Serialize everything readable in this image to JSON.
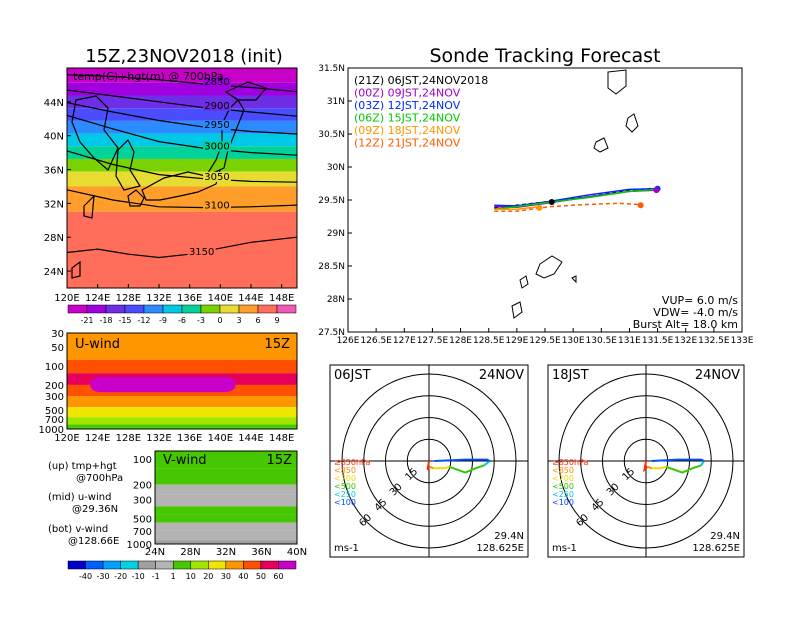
{
  "chart_data": [
    {
      "type": "heatmap",
      "panel": "map_700hPa",
      "title": "15Z,23NOV2018 (init)",
      "overlay_label": "temp(C)+hgt(m) @ 700hPa",
      "x_ticks": [
        "120E",
        "124E",
        "128E",
        "132E",
        "136E",
        "140E",
        "144E",
        "148E"
      ],
      "y_ticks": [
        "24N",
        "28N",
        "32N",
        "36N",
        "40N",
        "44N"
      ],
      "xlim": [
        120,
        150
      ],
      "ylim": [
        22,
        48
      ],
      "contour_labels": [
        "2850",
        "2900",
        "2950",
        "3000",
        "3050",
        "3100",
        "3150"
      ],
      "contours": [
        {
          "label": "2850",
          "points": [
            [
              120,
              47.2
            ],
            [
              126,
              47.0
            ],
            [
              132,
              46.6
            ],
            [
              138,
              46.1
            ],
            [
              144,
              45.7
            ],
            [
              150,
              45.2
            ]
          ]
        },
        {
          "label": "2900",
          "points": [
            [
              120,
              45.4
            ],
            [
              126,
              44.7
            ],
            [
              132,
              44.0
            ],
            [
              138,
              43.3
            ],
            [
              144,
              42.8
            ],
            [
              150,
              42.3
            ]
          ]
        },
        {
          "label": "2950",
          "points": [
            [
              120,
              43.9
            ],
            [
              126,
              42.8
            ],
            [
              132,
              41.8
            ],
            [
              138,
              41.0
            ],
            [
              144,
              40.5
            ],
            [
              150,
              40.2
            ]
          ]
        },
        {
          "label": "3000",
          "points": [
            [
              120,
              42.4
            ],
            [
              126,
              40.8
            ],
            [
              132,
              39.3
            ],
            [
              138,
              38.5
            ],
            [
              144,
              38.0
            ],
            [
              150,
              37.7
            ]
          ]
        },
        {
          "label": "3050",
          "points": [
            [
              120,
              38.2
            ],
            [
              126,
              36.6
            ],
            [
              132,
              35.4
            ],
            [
              138,
              34.9
            ],
            [
              144,
              34.6
            ],
            [
              150,
              34.5
            ]
          ]
        },
        {
          "label": "3100",
          "points": [
            [
              120,
              33.6
            ],
            [
              126,
              32.4
            ],
            [
              132,
              31.6
            ],
            [
              138,
              31.5
            ],
            [
              144,
              31.6
            ],
            [
              150,
              31.8
            ]
          ]
        },
        {
          "label": "3150",
          "points": [
            [
              120,
              26.2
            ],
            [
              124,
              26.6
            ],
            [
              128,
              26.0
            ],
            [
              132,
              25.6
            ],
            [
              136,
              26.0
            ],
            [
              140,
              26.7
            ],
            [
              144,
              27.4
            ],
            [
              150,
              28.0
            ]
          ]
        }
      ],
      "temperature_bands": [
        {
          "lat": 47.0,
          "value": -21
        },
        {
          "lat": 45.5,
          "value": -18
        },
        {
          "lat": 44.0,
          "value": -15
        },
        {
          "lat": 42.5,
          "value": -12
        },
        {
          "lat": 41.0,
          "value": -9
        },
        {
          "lat": 39.5,
          "value": -6
        },
        {
          "lat": 38.0,
          "value": -3
        },
        {
          "lat": 36.5,
          "value": 0
        },
        {
          "lat": 35.0,
          "value": 3
        },
        {
          "lat": 33.0,
          "value": 6
        },
        {
          "lat": 29.0,
          "value": 9
        }
      ],
      "colorbar_labels": [
        "-21",
        "-18",
        "-15",
        "-12",
        "-9",
        "-6",
        "-3",
        "0",
        "3",
        "6",
        "9"
      ],
      "colorbar_colors": [
        "#c800c8",
        "#a000e0",
        "#6e2ee6",
        "#4c4cff",
        "#2c8cff",
        "#00c8e6",
        "#00d29a",
        "#7ad200",
        "#e6dc32",
        "#ff9e2a",
        "#ff6e5a",
        "#f05ab4"
      ]
    },
    {
      "type": "heatmap",
      "panel": "u_wind_cross_section",
      "label": "U-wind",
      "time_label": "15Z",
      "x_ticks": [
        "120E",
        "124E",
        "128E",
        "132E",
        "136E",
        "140E",
        "144E",
        "148E"
      ],
      "y_ticks": [
        "30",
        "50",
        "100",
        "200",
        "300",
        "500",
        "700",
        "1000"
      ],
      "xlim": [
        120,
        150
      ],
      "band_values": [
        40,
        40,
        50,
        60,
        50,
        40,
        30,
        20,
        10,
        5
      ],
      "hot_core": {
        "x_from": 123,
        "x_to": 142,
        "p_top": 150,
        "p_bottom": 260,
        "value": 80
      }
    },
    {
      "type": "heatmap",
      "panel": "v_wind_cross_section",
      "label": "V-wind",
      "time_label": "15Z",
      "x_ticks": [
        "24N",
        "28N",
        "32N",
        "36N",
        "40N"
      ],
      "y_ticks": [
        "100",
        "200",
        "300",
        "500",
        "700",
        "1000"
      ],
      "xlim": [
        24,
        40
      ],
      "band_values": [
        10,
        10,
        1,
        1,
        10,
        10,
        1,
        1,
        -1
      ],
      "colorbar_labels": [
        "-40",
        "-30",
        "-20",
        "-10",
        "-1",
        "1",
        "10",
        "20",
        "30",
        "40",
        "50",
        "60"
      ],
      "colorbar_colors": [
        "#0000cc",
        "#0060ff",
        "#00a0ff",
        "#00d2e6",
        "#a0a0a0",
        "#b4b4b4",
        "#46c800",
        "#a0e600",
        "#f0e600",
        "#ff9600",
        "#ff5000",
        "#e6005a",
        "#c800c8"
      ]
    },
    {
      "type": "line",
      "panel": "sonde_tracking",
      "title": "Sonde Tracking Forecast",
      "x_ticks": [
        "126E",
        "126.5E",
        "127E",
        "127.5E",
        "128E",
        "128.5E",
        "129E",
        "129.5E",
        "130E",
        "130.5E",
        "131E",
        "131.5E",
        "132E",
        "132.5E",
        "133E"
      ],
      "y_ticks": [
        "27.5N",
        "28N",
        "28.5N",
        "29N",
        "29.5N",
        "30N",
        "30.5N",
        "31N",
        "31.5N"
      ],
      "xlim": [
        126,
        133
      ],
      "ylim": [
        27.5,
        31.5
      ],
      "series": [
        {
          "name": "(21Z)  06JST,24NOV2018",
          "color": "#000000",
          "dash": true,
          "x": [
            128.6,
            129.0,
            129.6,
            130.3,
            131.0,
            131.5
          ],
          "y": [
            29.38,
            29.42,
            29.48,
            29.55,
            29.65,
            29.68
          ]
        },
        {
          "name": "(00Z)  09JST,24NOV",
          "color": "#a000c8",
          "dash": false,
          "x": [
            128.6,
            129.0,
            129.6,
            130.3,
            131.0,
            131.5
          ],
          "y": [
            29.4,
            29.39,
            29.46,
            29.55,
            29.63,
            29.65
          ]
        },
        {
          "name": "(03Z)  12JST,24NOV",
          "color": "#0028ff",
          "dash": false,
          "x": [
            128.6,
            129.0,
            129.6,
            130.3,
            131.0,
            131.5
          ],
          "y": [
            29.42,
            29.41,
            29.48,
            29.58,
            29.66,
            29.67
          ]
        },
        {
          "name": "(06Z)  15JST,24NOV",
          "color": "#00c800",
          "dash": false,
          "x": [
            128.6,
            129.0,
            129.6,
            130.3,
            131.0,
            131.5
          ],
          "y": [
            29.36,
            29.4,
            29.47,
            29.54,
            29.63,
            29.66
          ]
        },
        {
          "name": "(09Z)  18JST,24NOV",
          "color": "#ff9600",
          "dash": false,
          "x": [
            128.6,
            129.0,
            129.4
          ],
          "y": [
            29.36,
            29.36,
            29.4
          ]
        },
        {
          "name": "(12Z)  21JST,24NOV",
          "color": "#ff5a00",
          "dash": true,
          "x": [
            128.6,
            129.0,
            129.6,
            130.2,
            130.8,
            131.2
          ],
          "y": [
            29.33,
            29.33,
            29.4,
            29.43,
            29.45,
            29.43
          ]
        }
      ],
      "points": [
        {
          "x": 131.5,
          "y": 29.67,
          "color": "#0028ff"
        },
        {
          "x": 131.48,
          "y": 29.65,
          "color": "#a000c8"
        },
        {
          "x": 129.62,
          "y": 29.47,
          "color": "#000000"
        },
        {
          "x": 129.4,
          "y": 29.38,
          "color": "#ff9600"
        },
        {
          "x": 131.2,
          "y": 29.42,
          "color": "#ff5a00"
        }
      ],
      "annotations": [
        "VUP=  6.0  m/s",
        "VDW= -4.0  m/s",
        "Burst Alt=  18.0  km"
      ]
    },
    {
      "type": "line",
      "panel": "hodograph_06JST",
      "time": "06JST",
      "date": "24NOV",
      "ring_labels": [
        "15",
        "30",
        "45",
        "60"
      ],
      "unit": "ms-1",
      "location": [
        "29.4N",
        "128.625E"
      ],
      "level_legend": [
        "≥850hPa",
        "<850",
        "<700",
        "<500",
        "<250",
        "<100"
      ],
      "level_colors": [
        "#ff2a00",
        "#ff8c00",
        "#f0dc00",
        "#32c800",
        "#00c8dc",
        "#0050ff"
      ],
      "segments": [
        {
          "color": "#ff2a00",
          "u": [
            0,
            -1,
            0.5
          ],
          "v": [
            0,
            -6,
            -4
          ]
        },
        {
          "color": "#ff8c00",
          "u": [
            0.5,
            3
          ],
          "v": [
            -4,
            -5
          ]
        },
        {
          "color": "#f0dc00",
          "u": [
            3,
            10,
            14
          ],
          "v": [
            -5,
            -5,
            -4
          ]
        },
        {
          "color": "#32c800",
          "u": [
            14,
            25,
            32,
            38
          ],
          "v": [
            -4,
            -8,
            -5,
            -3
          ]
        },
        {
          "color": "#00c8dc",
          "u": [
            38,
            42
          ],
          "v": [
            -3,
            0
          ]
        },
        {
          "color": "#0050ff",
          "u": [
            42,
            40,
            25,
            4
          ],
          "v": [
            0,
            1,
            1,
            0
          ]
        }
      ]
    },
    {
      "type": "line",
      "panel": "hodograph_18JST",
      "time": "18JST",
      "date": "24NOV",
      "ring_labels": [
        "15",
        "30",
        "45",
        "60"
      ],
      "unit": "ms-1",
      "location": [
        "29.4N",
        "128.625E"
      ],
      "level_legend": [
        "≥850hPa",
        "<850",
        "<700",
        "<500",
        "<250",
        "<100"
      ],
      "level_colors": [
        "#ff2a00",
        "#ff8c00",
        "#f0dc00",
        "#32c800",
        "#00c8dc",
        "#0050ff"
      ],
      "segments": [
        {
          "color": "#ff2a00",
          "u": [
            0,
            -1,
            1
          ],
          "v": [
            0,
            -6,
            -4
          ]
        },
        {
          "color": "#ff8c00",
          "u": [
            1,
            4
          ],
          "v": [
            -4,
            -5
          ]
        },
        {
          "color": "#f0dc00",
          "u": [
            4,
            10,
            14
          ],
          "v": [
            -5,
            -5,
            -4
          ]
        },
        {
          "color": "#32c800",
          "u": [
            14,
            25,
            32,
            38
          ],
          "v": [
            -4,
            -8,
            -5,
            -3
          ]
        },
        {
          "color": "#00c8dc",
          "u": [
            38,
            40
          ],
          "v": [
            -3,
            0
          ]
        },
        {
          "color": "#0050ff",
          "u": [
            40,
            38,
            22,
            4
          ],
          "v": [
            0,
            1,
            1,
            0
          ]
        }
      ]
    }
  ],
  "side_labels": [
    {
      "line1": "(up) tmp+hgt",
      "line2": "@700hPa"
    },
    {
      "line1": "(mid) u-wind",
      "line2": "@29.36N"
    },
    {
      "line1": "(bot) v-wind",
      "line2": "@128.66E"
    }
  ]
}
